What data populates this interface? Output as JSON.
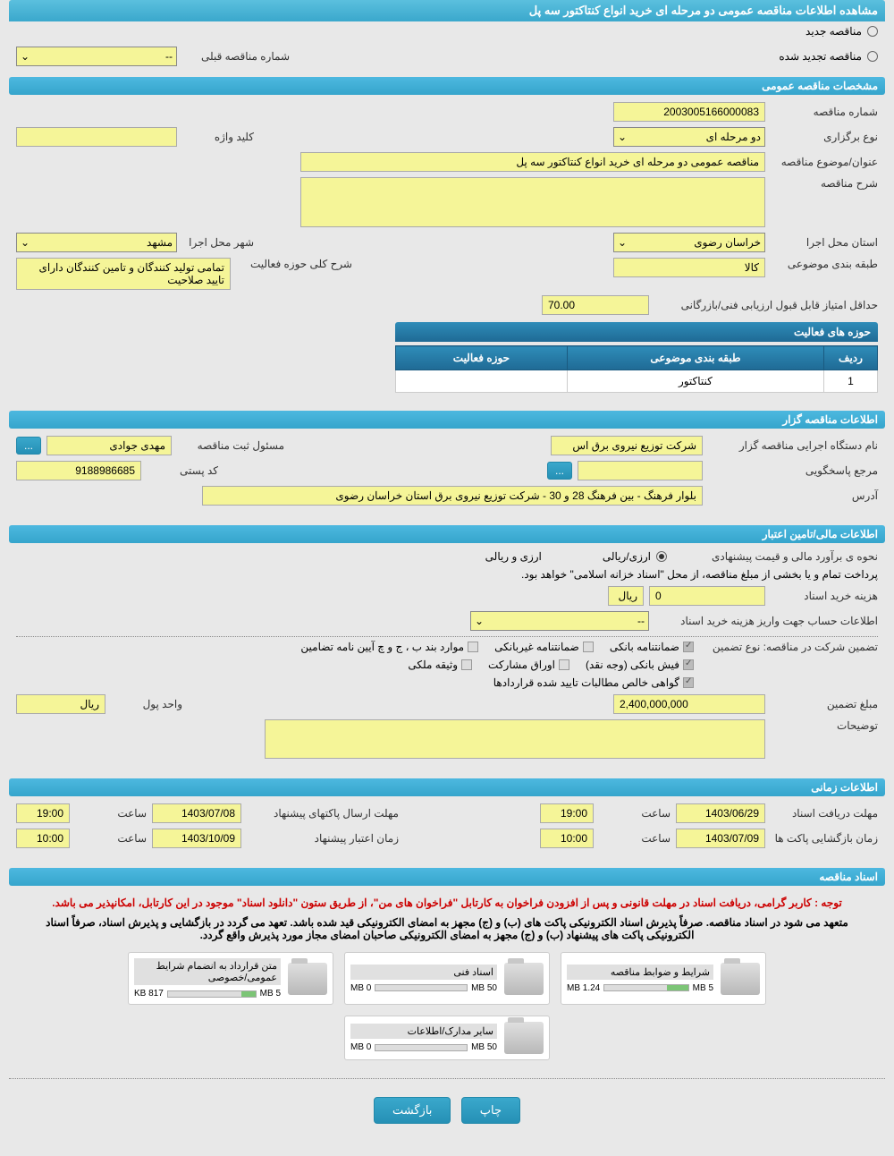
{
  "header": {
    "title": "مشاهده اطلاعات مناقصه عمومی دو مرحله ای خرید انواع کنتاکتور سه پل"
  },
  "top_radios": {
    "new_label": "مناقصه جدید",
    "renewed_label": "مناقصه تجدید شده",
    "prev_tender_label": "شماره مناقصه قبلی",
    "prev_tender_value": "--"
  },
  "general": {
    "section_title": "مشخصات مناقصه عمومی",
    "tender_no_label": "شماره مناقصه",
    "tender_no": "2003005166000083",
    "holding_type_label": "نوع برگزاری",
    "holding_type": "دو مرحله ای",
    "keyword_label": "کلید واژه",
    "keyword": "",
    "subject_label": "عنوان/موضوع مناقصه",
    "subject": "مناقصه عمومی دو مرحله ای خرید انواع کنتاکتور سه پل",
    "desc_label": "شرح مناقصه",
    "desc": "",
    "province_label": "استان محل اجرا",
    "province": "خراسان رضوی",
    "city_label": "شهر محل اجرا",
    "city": "مشهد",
    "category_label": "طبقه بندی موضوعی",
    "category": "کالا",
    "scope_desc_label": "شرح کلی حوزه فعالیت",
    "scope_desc": "تمامی تولید کنندگان  و تامین کنندگان دارای تایید صلاحیت",
    "min_score_label": "حداقل امتیاز قابل قبول ارزیابی فنی/بازرگانی",
    "min_score": "70.00"
  },
  "activity_table": {
    "title": "حوزه های فعالیت",
    "col_row": "ردیف",
    "col_category": "طبقه بندی موضوعی",
    "col_scope": "حوزه فعالیت",
    "rows": [
      {
        "idx": "1",
        "category": "کنتاکتور",
        "scope": ""
      }
    ]
  },
  "organizer": {
    "section_title": "اطلاعات مناقصه گزار",
    "org_label": "نام دستگاه اجرایی مناقصه گزار",
    "org_value": "شرکت توزیع نیروی برق اس",
    "manager_label": "مسئول ثبت مناقصه",
    "manager_value": "مهدی جوادی",
    "contact_label": "مرجع پاسخگویی",
    "postal_label": "کد پستی",
    "postal_value": "9188986685",
    "address_label": "آدرس",
    "address_value": "بلوار فرهنگ - بین فرهنگ 28 و 30 - شرکت توزیع نیروی برق استان خراسان رضوی"
  },
  "financial": {
    "section_title": "اطلاعات مالی/تامین اعتبار",
    "estimate_label": "نحوه ی برآورد مالی و قیمت پیشنهادی",
    "estimate_type": "ارزی/ریالی",
    "currency_type": "ارزی و ریالی",
    "treasury_note": "پرداخت تمام و یا بخشی از مبلغ مناقصه، از محل \"اسناد خزانه اسلامی\" خواهد بود.",
    "doc_cost_label": "هزینه خرید اسناد",
    "doc_cost": "0",
    "doc_cost_unit": "ریال",
    "account_info_label": "اطلاعات حساب جهت واریز هزینه خرید اسناد",
    "account_info": "--",
    "guarantee_label": "تضمین شرکت در مناقصه:   نوع تضمین",
    "cb_bank": "ضمانتنامه بانکی",
    "cb_nonbank": "ضمانتنامه غیربانکی",
    "cb_clauses": "موارد بند ب ، ج و چ آیین نامه تضامین",
    "cb_cash": "فیش بانکی (وجه نقد)",
    "cb_bonds": "اوراق مشارکت",
    "cb_lien": "وثیقه ملکی",
    "cb_cert": "گواهی خالص مطالبات تایید شده قراردادها",
    "amount_label": "مبلغ تضمین",
    "amount": "2,400,000,000",
    "unit_label": "واحد پول",
    "unit": "ریال",
    "notes_label": "توضیحات",
    "notes": ""
  },
  "timing": {
    "section_title": "اطلاعات زمانی",
    "receive_label": "مهلت دریافت اسناد",
    "receive_date": "1403/06/29",
    "receive_time_label": "ساعت",
    "receive_time": "19:00",
    "submit_label": "مهلت ارسال پاکتهای پیشنهاد",
    "submit_date": "1403/07/08",
    "submit_time_label": "ساعت",
    "submit_time": "19:00",
    "open_label": "زمان بازگشایی پاکت ها",
    "open_date": "1403/07/09",
    "open_time_label": "ساعت",
    "open_time": "10:00",
    "validity_label": "زمان اعتبار پیشنهاد",
    "validity_date": "1403/10/09",
    "validity_time_label": "ساعت",
    "validity_time": "10:00"
  },
  "docs": {
    "section_title": "اسناد مناقصه",
    "notice1": "توجه : کاربر گرامی، دریافت اسناد در مهلت قانونی و پس از افزودن فراخوان به کارتابل \"فراخوان های من\"، از طریق ستون \"دانلود اسناد\" موجود در این کارتابل، امکانپذیر می باشد.",
    "notice2": "متعهد می شود در اسناد مناقصه. صرفاً پذیرش اسناد الکترونیکی پاکت های (ب) و (ج) مجهز به امضای الکترونیکی قید شده باشد. تعهد می گردد در بازگشایی و پذیرش اسناد، صرفاً اسناد الکترونیکی پاکت های پیشنهاد (ب) و (ج) مجهز به امضای الکترونیکی صاحبان امضای مجاز مورد پذیرش واقع گردد.",
    "cards": [
      {
        "title": "شرایط و ضوابط مناقصه",
        "used": "1.24 MB",
        "total": "5 MB",
        "pct": 25
      },
      {
        "title": "اسناد فنی",
        "used": "0 MB",
        "total": "50 MB",
        "pct": 0
      },
      {
        "title": "متن قرارداد به انضمام شرایط عمومی/خصوصی",
        "used": "817 KB",
        "total": "5 MB",
        "pct": 16
      },
      {
        "title": "سایر مدارک/اطلاعات",
        "used": "0 MB",
        "total": "50 MB",
        "pct": 0
      }
    ]
  },
  "footer": {
    "print": "چاپ",
    "back": "بازگشت"
  },
  "ellipsis": "..."
}
